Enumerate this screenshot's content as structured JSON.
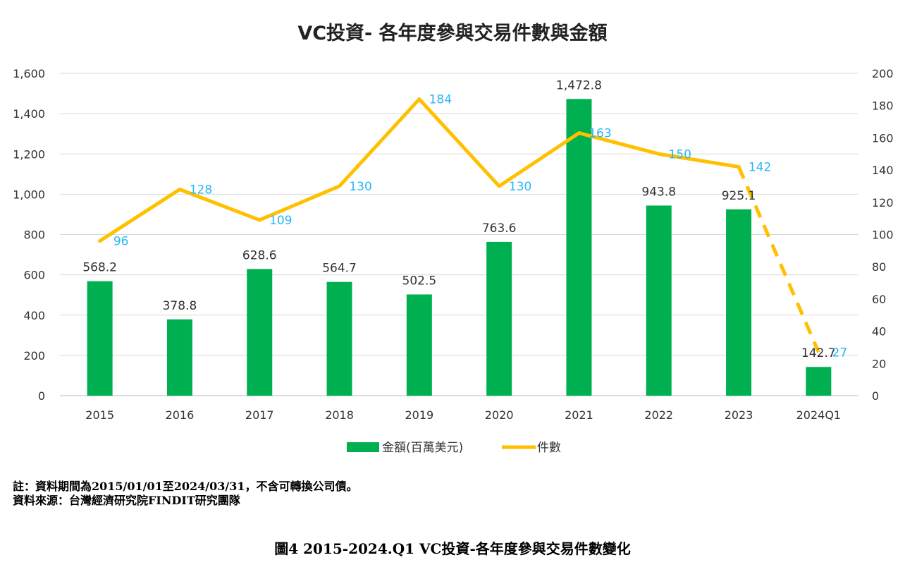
{
  "chart_data": {
    "type": "bar+line",
    "title": "VC投資- 各年度參與交易件數與金額",
    "categories": [
      "2015",
      "2016",
      "2017",
      "2018",
      "2019",
      "2020",
      "2021",
      "2022",
      "2023",
      "2024Q1"
    ],
    "series": [
      {
        "name": "金額(百萬美元)",
        "type": "bar",
        "axis": "left",
        "color": "#00b050",
        "values": [
          568.2,
          378.8,
          628.6,
          564.7,
          502.5,
          763.6,
          1472.8,
          943.8,
          925.1,
          142.7
        ],
        "labels": [
          "568.2",
          "378.8",
          "628.6",
          "564.7",
          "502.5",
          "763.6",
          "1,472.8",
          "943.8",
          "925.1",
          "142.7"
        ]
      },
      {
        "name": "件數",
        "type": "line",
        "axis": "right",
        "color": "#ffc000",
        "values": [
          96,
          128,
          109,
          130,
          184,
          130,
          163,
          150,
          142,
          27
        ],
        "labels": [
          "96",
          "128",
          "109",
          "130",
          "184",
          "130",
          "163",
          "150",
          "142",
          "27"
        ],
        "dashed_last_segment": true
      }
    ],
    "y_left": {
      "min": 0,
      "max": 1600,
      "ticks": [
        "0",
        "200",
        "400",
        "600",
        "800",
        "1,000",
        "1,200",
        "1,400",
        "1,600"
      ]
    },
    "y_right": {
      "min": 0,
      "max": 200,
      "ticks": [
        "0",
        "20",
        "40",
        "60",
        "80",
        "100",
        "120",
        "140",
        "160",
        "180",
        "200"
      ]
    },
    "grid": true,
    "legend": "bottom",
    "label_color_line": "#29b6f6"
  },
  "notes": {
    "line1": "註：資料期間為2015/01/01至2024/03/31，不含可轉換公司債。",
    "line2": "資料來源：台灣經濟研究院FINDIT研究團隊"
  },
  "caption": "圖4  2015-2024.Q1 VC投資-各年度參與交易件數變化"
}
